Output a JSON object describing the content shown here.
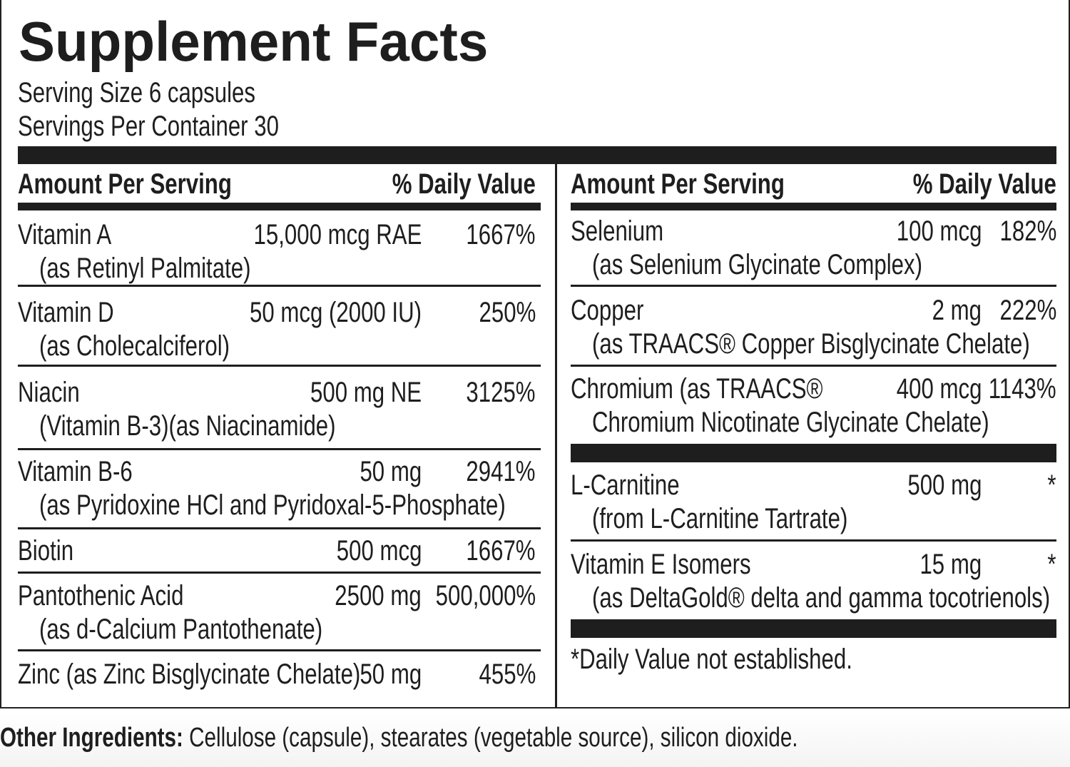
{
  "title": "Supplement Facts",
  "serving_size": "Serving Size 6 capsules",
  "servings_per_container": "Servings Per Container 30",
  "header": {
    "amount": "Amount Per Serving",
    "dv": "% Daily Value"
  },
  "left_rows": [
    {
      "name": "Vitamin A",
      "sub": "(as Retinyl Palmitate)",
      "amount": "15,000 mcg RAE",
      "dv": "1667%"
    },
    {
      "name": "Vitamin D",
      "sub": "(as Cholecalciferol)",
      "amount": "50 mcg (2000 IU)",
      "dv": "250%"
    },
    {
      "name": "Niacin",
      "sub": "(Vitamin B-3)(as Niacinamide)",
      "amount": "500 mg NE",
      "dv": "3125%"
    },
    {
      "name": "Vitamin B-6",
      "sub": "(as Pyridoxine HCl and Pyridoxal-5-Phosphate)",
      "amount": "50 mg",
      "dv": "2941%"
    },
    {
      "name": "Biotin",
      "amount": "500 mcg",
      "dv": "1667%"
    },
    {
      "name": "Pantothenic Acid",
      "sub": "(as d-Calcium Pantothenate)",
      "amount": "2500 mg",
      "dv": "500,000%"
    },
    {
      "name": "Zinc (as Zinc Bisglycinate Chelate)",
      "amount": "50 mg",
      "dv": "455%"
    }
  ],
  "right_rows": [
    {
      "name": "Selenium",
      "sub": "(as Selenium Glycinate Complex)",
      "amount": "100 mcg",
      "dv": "182%"
    },
    {
      "name": "Copper",
      "sub": "(as TRAACS® Copper Bisglycinate Chelate)",
      "amount": "2 mg",
      "dv": "222%"
    },
    {
      "name": "Chromium (as TRAACS®",
      "sub": "Chromium Nicotinate Glycinate Chelate)",
      "amount": "400 mcg",
      "dv": "1143%"
    },
    {
      "name": "L-Carnitine",
      "sub": "(from L-Carnitine Tartrate)",
      "amount": "500 mg",
      "dv": "*"
    },
    {
      "name": "Vitamin E Isomers",
      "sub": "(as DeltaGold® delta and gamma tocotrienols)",
      "amount": "15 mg",
      "dv": "*"
    }
  ],
  "footnote": "*Daily Value not established.",
  "other": {
    "label": "Other Ingredients:",
    "text": "Cellulose (capsule), stearates (vegetable source), silicon dioxide."
  }
}
